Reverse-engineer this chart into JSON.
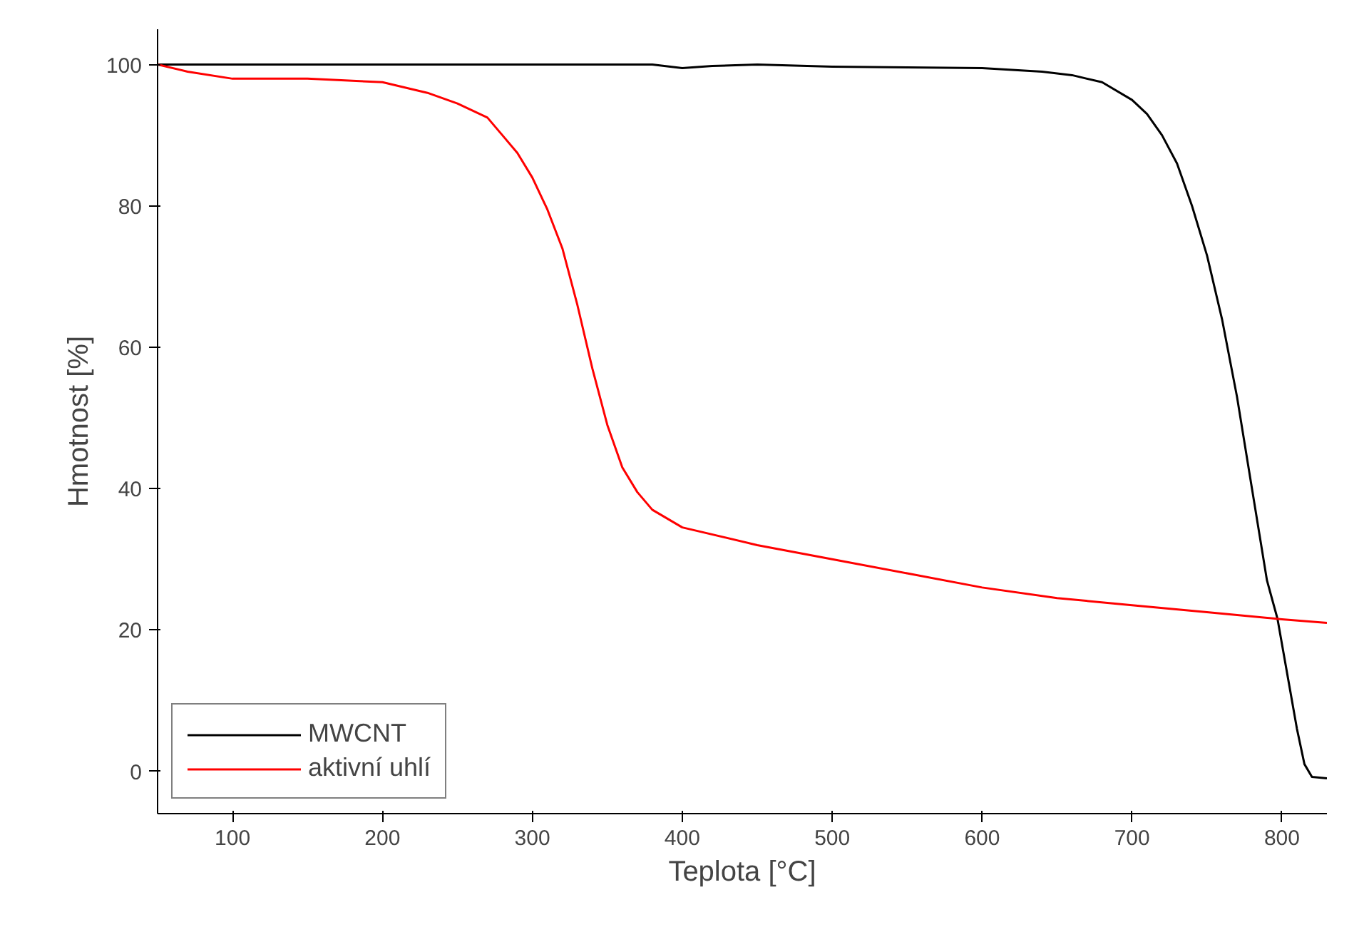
{
  "chart_data": {
    "type": "line",
    "xlabel": "Teplota [°C]",
    "ylabel": "Hmotnost [%]",
    "xlim": [
      50,
      830
    ],
    "ylim": [
      -6,
      105
    ],
    "xticks": [
      100,
      200,
      300,
      400,
      500,
      600,
      700,
      800
    ],
    "yticks": [
      0,
      20,
      40,
      60,
      80,
      100
    ],
    "grid": false,
    "legend": "bottom left",
    "marker": "none",
    "line_style": "solid",
    "series": [
      {
        "name": "MWCNT",
        "color": "#000000",
        "x": [
          50,
          100,
          200,
          300,
          380,
          400,
          420,
          450,
          500,
          550,
          600,
          640,
          660,
          680,
          700,
          710,
          720,
          730,
          740,
          750,
          760,
          770,
          780,
          790,
          797,
          805,
          810,
          815,
          820,
          830
        ],
        "values": [
          100,
          100,
          100,
          100,
          100,
          99.5,
          99.8,
          100,
          99.7,
          99.6,
          99.5,
          99,
          98.5,
          97.5,
          95,
          93,
          90,
          86,
          80,
          73,
          64,
          53,
          40,
          27,
          21.6,
          12,
          6,
          1,
          -0.8,
          -1
        ]
      },
      {
        "name": "aktivní uhlí",
        "color": "#ff0000",
        "x": [
          50,
          70,
          100,
          150,
          200,
          230,
          250,
          270,
          280,
          290,
          300,
          310,
          320,
          330,
          340,
          350,
          360,
          370,
          380,
          400,
          450,
          500,
          550,
          600,
          650,
          700,
          750,
          800,
          830
        ],
        "values": [
          100,
          99,
          98,
          98,
          97.5,
          96,
          94.5,
          92.5,
          90,
          87.5,
          84,
          79.5,
          74,
          66,
          57,
          49,
          43,
          39.5,
          37,
          34.5,
          32,
          30,
          28,
          26,
          24.5,
          23.5,
          22.5,
          21.5,
          21
        ]
      }
    ]
  }
}
